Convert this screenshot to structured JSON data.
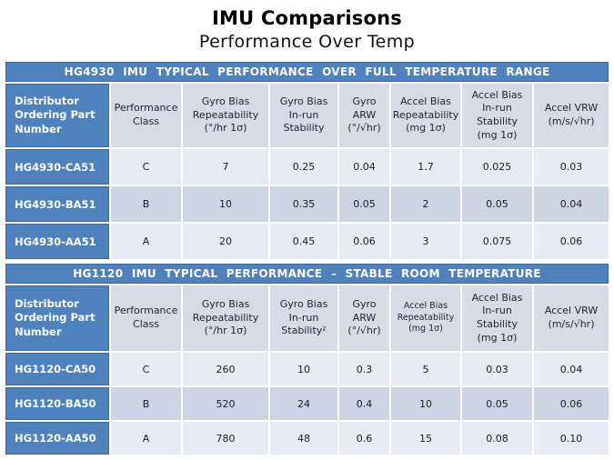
{
  "title": "IMU Comparisons",
  "subtitle": "Performance Over Temp",
  "colors": {
    "accent_blue": "#4F81BD",
    "accent_blue_border": "#40699C",
    "header_row_bg": "#D8DAE6",
    "row_band_light": "#E9EBF4",
    "row_band_dark": "#CDD4E3",
    "title_text": "#000000",
    "band_text": "#FFFFFF"
  },
  "tables": [
    {
      "band_title": "HG4930 IMU TYPICAL PERFORMANCE OVER FULL TEMPERATURE RANGE",
      "columns": [
        "Distributor\nOrdering Part\nNumber",
        "Performance\nClass",
        "Gyro Bias\nRepeatability\n(°/hr 1σ)",
        "Gyro Bias\nIn-run\nStability",
        "Gyro\nARW\n(°/√hr)",
        "Accel Bias\nRepeatability\n(mg 1σ)",
        "Accel Bias\nIn-run\nStability\n(mg 1σ)",
        "Accel VRW\n(m/s/√hr)"
      ],
      "rows": [
        [
          "HG4930-CA51",
          "C",
          "7",
          "0.25",
          "0.04",
          "1.7",
          "0.025",
          "0.03"
        ],
        [
          "HG4930-BA51",
          "B",
          "10",
          "0.35",
          "0.05",
          "2",
          "0.05",
          "0.04"
        ],
        [
          "HG4930-AA51",
          "A",
          "20",
          "0.45",
          "0.06",
          "3",
          "0.075",
          "0.06"
        ]
      ]
    },
    {
      "band_title": "HG1120 IMU TYPICAL PERFORMANCE – STABLE ROOM TEMPERATURE",
      "columns": [
        "Distributor\nOrdering Part\nNumber",
        "Performance\nClass",
        "Gyro Bias\nRepeatability\n(°/hr 1σ)",
        "Gyro Bias\nIn-run\nStability²",
        "Gyro\nARW\n(°/√hr)",
        "Accel Bias\nRepeatability\n(mg 1σ)",
        "Accel Bias\nIn-run\nStability\n(mg 1σ)",
        "Accel VRW\n(m/s/√hr)"
      ],
      "rows": [
        [
          "HG1120-CA50",
          "C",
          "260",
          "10",
          "0.3",
          "5",
          "0.03",
          "0.04"
        ],
        [
          "HG1120-BA50",
          "B",
          "520",
          "24",
          "0.4",
          "10",
          "0.05",
          "0.06"
        ],
        [
          "HG1120-AA50",
          "A",
          "780",
          "48",
          "0.6",
          "15",
          "0.08",
          "0.10"
        ]
      ]
    }
  ]
}
